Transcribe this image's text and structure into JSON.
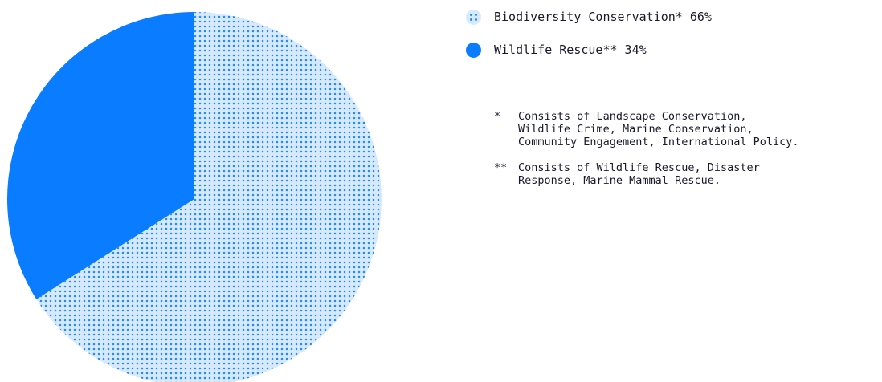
{
  "chart_data": {
    "type": "pie",
    "slices": [
      {
        "label": "Biodiversity Conservation*",
        "value": 66,
        "display": "Biodiversity Conservation* 66%",
        "color": "#1d8bff",
        "fill": "#d7e9ff",
        "pattern": "dots"
      },
      {
        "label": "Wildlife Rescue**",
        "value": 34,
        "display": "Wildlife Rescue** 34%",
        "color": "#0a7cff",
        "pattern": "solid"
      }
    ],
    "start_angle_deg": 0,
    "direction": "clockwise",
    "legend_position": "top-right"
  },
  "notes": [
    {
      "marker": "*",
      "text": "Consists of Landscape Conservation,\nWildlife Crime, Marine Conservation,\nCommunity Engagement, International Policy."
    },
    {
      "marker": "**",
      "text": "Consists of Wildlife Rescue, Disaster\nResponse, Marine Mammal Rescue."
    }
  ]
}
